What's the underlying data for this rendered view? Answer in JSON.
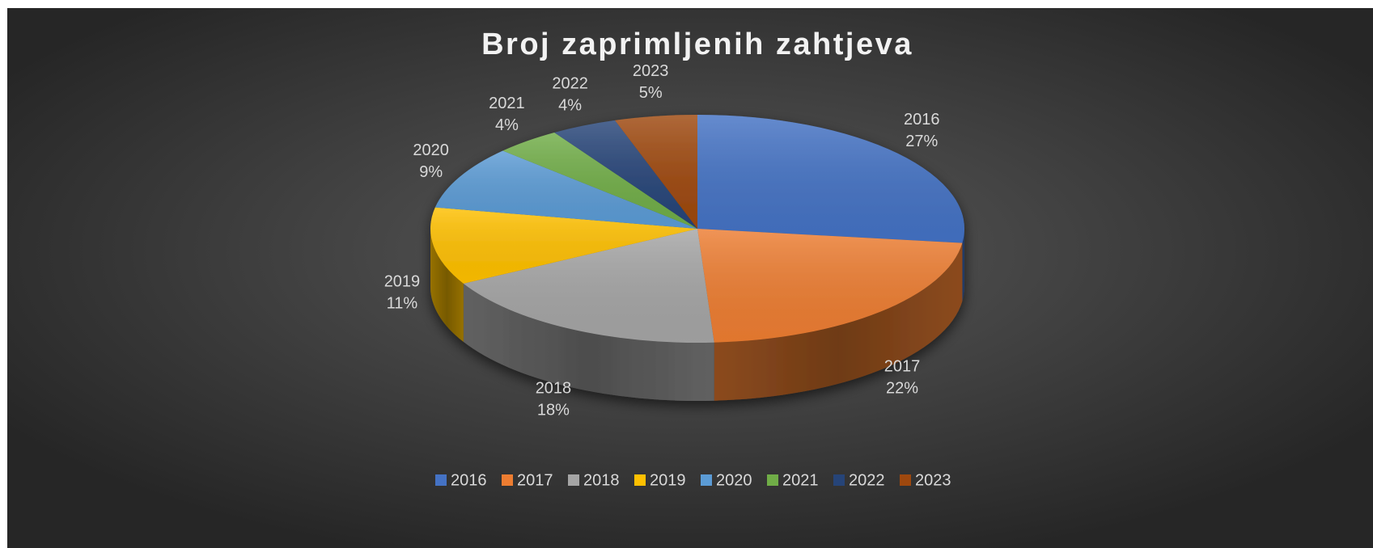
{
  "chart_data": {
    "type": "pie3d",
    "title": "Broj zaprimljenih zahtjeva",
    "categories": [
      "2016",
      "2017",
      "2018",
      "2019",
      "2020",
      "2021",
      "2022",
      "2023"
    ],
    "values": [
      27,
      22,
      18,
      11,
      9,
      4,
      4,
      5
    ],
    "value_labels": [
      "27%",
      "22%",
      "18%",
      "11%",
      "9%",
      "4%",
      "4%",
      "5%"
    ],
    "colors": [
      "#4472c4",
      "#ed7d31",
      "#a5a5a5",
      "#ffc000",
      "#5b9bd5",
      "#70ad47",
      "#264478",
      "#9e480e"
    ],
    "legend": "bottom"
  }
}
